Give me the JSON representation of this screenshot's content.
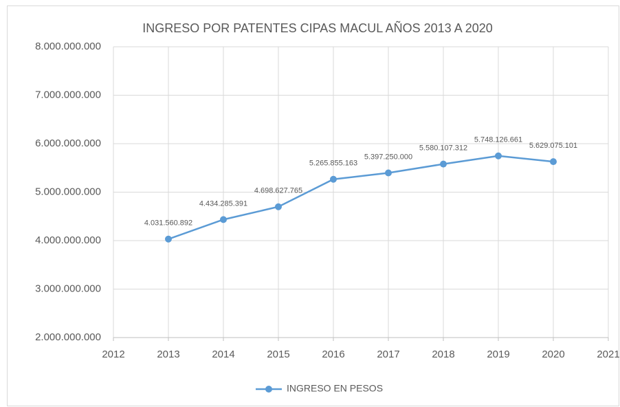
{
  "chart_data": {
    "type": "line",
    "title": "INGRESO POR PATENTES CIPAS MACUL AÑOS 2013 A 2020",
    "x": [
      2013,
      2014,
      2015,
      2016,
      2017,
      2018,
      2019,
      2020
    ],
    "series": [
      {
        "name": "INGRESO EN PESOS",
        "color": "#5b9bd5",
        "values": [
          4031560892,
          4434285391,
          4698627765,
          5265855163,
          5397250000,
          5580107312,
          5748126661,
          5629075101
        ],
        "value_labels": [
          "4.031.560.892",
          "4.434.285.391",
          "4.698.627.765",
          "5.265.855.163",
          "5.397.250.000",
          "5.580.107.312",
          "5.748.126.661",
          "5.629.075.101"
        ]
      }
    ],
    "xlim": [
      2012,
      2021
    ],
    "xticks": [
      2012,
      2013,
      2014,
      2015,
      2016,
      2017,
      2018,
      2019,
      2020,
      2021
    ],
    "ylim": [
      2000000000,
      8000000000
    ],
    "yticks": [
      {
        "value": 2000000000,
        "label": "2.000.000.000"
      },
      {
        "value": 3000000000,
        "label": "3.000.000.000"
      },
      {
        "value": 4000000000,
        "label": "4.000.000.000"
      },
      {
        "value": 5000000000,
        "label": "5.000.000.000"
      },
      {
        "value": 6000000000,
        "label": "6.000.000.000"
      },
      {
        "value": 7000000000,
        "label": "7.000.000.000"
      },
      {
        "value": 8000000000,
        "label": "8.000.000.000"
      }
    ],
    "grid": true,
    "legend": "bottom"
  }
}
